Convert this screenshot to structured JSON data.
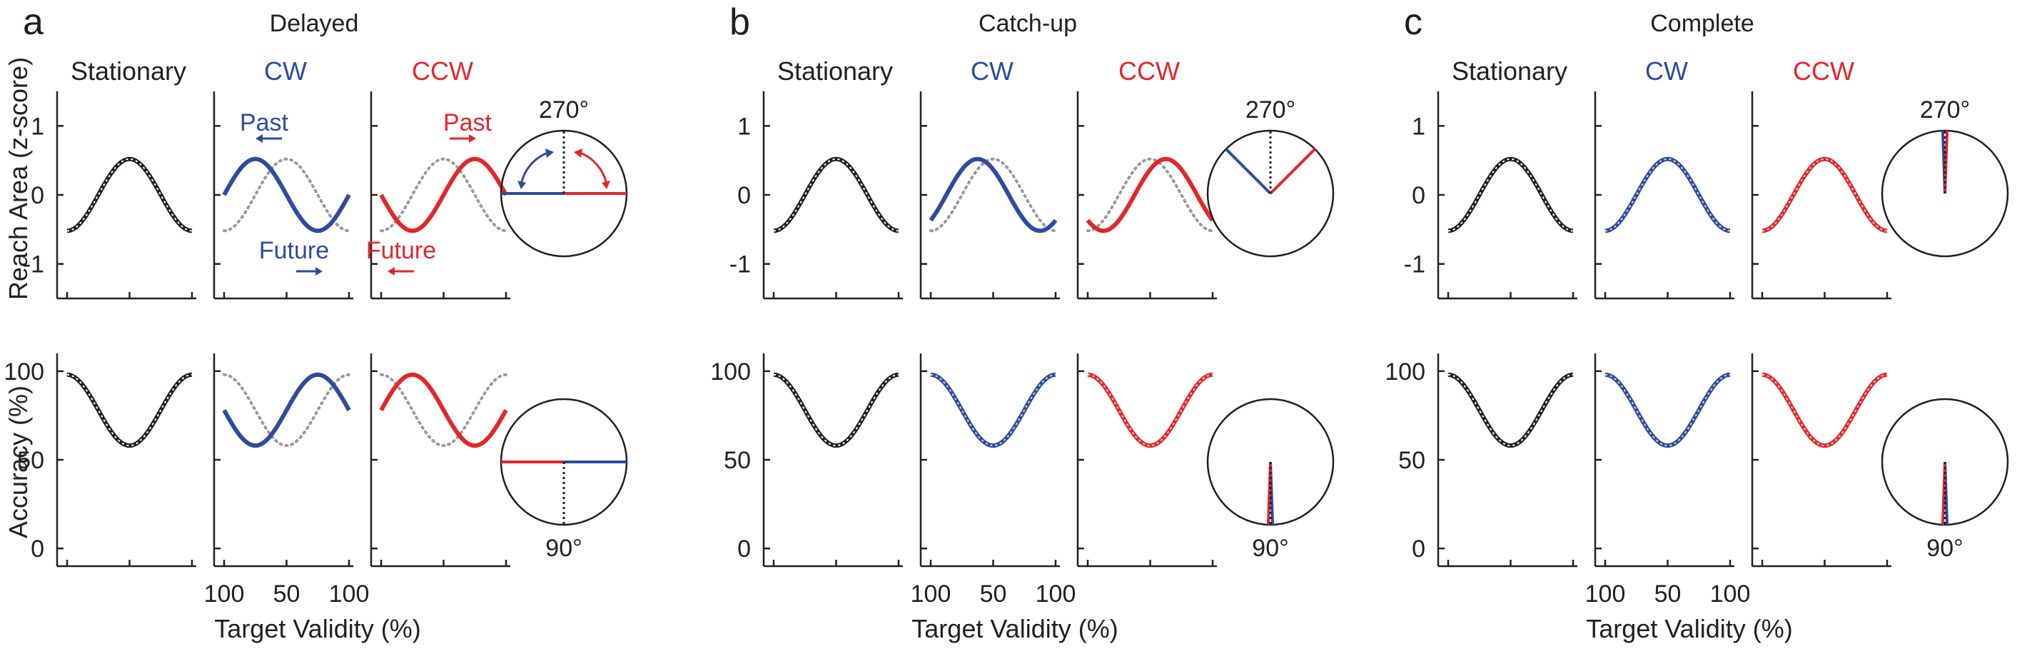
{
  "figure": {
    "y_axis_top_label": "Reach Area (z-score)",
    "y_axis_bottom_label": "Accuracy (%)",
    "x_axis_label": "Target Validity (%)",
    "x_tick_labels": [
      "100",
      "50",
      "100"
    ],
    "col_titles": [
      "Stationary",
      "CW",
      "CCW"
    ],
    "angle_270": "270°",
    "angle_90": "90°",
    "annot_past": "Past",
    "annot_future": "Future"
  },
  "colors": {
    "stationary": "#231f20",
    "cw": "#2e4b9e",
    "ccw": "#e4262a",
    "reference": "#9a9a9a"
  },
  "panels": [
    {
      "letter": "a",
      "title": "Delayed"
    },
    {
      "letter": "b",
      "title": "Catch-up"
    },
    {
      "letter": "c",
      "title": "Complete"
    }
  ],
  "chart_data": [
    {
      "type": "line",
      "panel": "a",
      "title": "Delayed",
      "x_domain": [
        0,
        1
      ],
      "reach_area": {
        "ylabel": "Reach Area (z-score)",
        "ylim": [
          -1.5,
          1.5
        ],
        "yticks": [
          -1,
          0,
          1
        ],
        "reference": {
          "amplitude": 0.52,
          "peak_x": 0.5
        },
        "series": [
          {
            "name": "Stationary",
            "amplitude": 0.52,
            "peak_x": 0.5
          },
          {
            "name": "CW",
            "amplitude": 0.52,
            "peak_x": 0.25
          },
          {
            "name": "CCW",
            "amplitude": 0.52,
            "peak_x": 0.75
          }
        ],
        "phase_angles_deg": {
          "cw": 180,
          "ccw": 0,
          "stationary": 270
        }
      },
      "accuracy": {
        "ylabel": "Accuracy (%)",
        "ylim": [
          -10,
          110
        ],
        "yticks": [
          0,
          50,
          100
        ],
        "reference": {
          "mid": 78,
          "amplitude": 20,
          "trough_x": 0.5
        },
        "series": [
          {
            "name": "Stationary",
            "mid": 78,
            "amplitude": 20,
            "trough_x": 0.5
          },
          {
            "name": "CW",
            "mid": 78,
            "amplitude": 20,
            "trough_x": 0.25
          },
          {
            "name": "CCW",
            "mid": 78,
            "amplitude": 20,
            "trough_x": 0.75
          }
        ],
        "phase_angles_deg": {
          "cw": 0,
          "ccw": 180,
          "stationary": 90
        }
      }
    },
    {
      "type": "line",
      "panel": "b",
      "title": "Catch-up",
      "x_domain": [
        0,
        1
      ],
      "reach_area": {
        "ylabel": "Reach Area (z-score)",
        "ylim": [
          -1.5,
          1.5
        ],
        "yticks": [
          -1,
          0,
          1
        ],
        "reference": {
          "amplitude": 0.52,
          "peak_x": 0.5
        },
        "series": [
          {
            "name": "Stationary",
            "amplitude": 0.52,
            "peak_x": 0.5
          },
          {
            "name": "CW",
            "amplitude": 0.52,
            "peak_x": 0.375
          },
          {
            "name": "CCW",
            "amplitude": 0.52,
            "peak_x": 0.625
          }
        ],
        "phase_angles_deg": {
          "cw": 225,
          "ccw": 315,
          "stationary": 270
        }
      },
      "accuracy": {
        "ylabel": "Accuracy (%)",
        "ylim": [
          -10,
          110
        ],
        "yticks": [
          0,
          50,
          100
        ],
        "reference": {
          "mid": 78,
          "amplitude": 20,
          "trough_x": 0.5
        },
        "series": [
          {
            "name": "Stationary",
            "mid": 78,
            "amplitude": 20,
            "trough_x": 0.5
          },
          {
            "name": "CW",
            "mid": 78,
            "amplitude": 20,
            "trough_x": 0.5
          },
          {
            "name": "CCW",
            "mid": 78,
            "amplitude": 20,
            "trough_x": 0.5
          }
        ],
        "phase_angles_deg": {
          "cw": 90,
          "ccw": 90,
          "stationary": 90
        }
      }
    },
    {
      "type": "line",
      "panel": "c",
      "title": "Complete",
      "x_domain": [
        0,
        1
      ],
      "reach_area": {
        "ylabel": "Reach Area (z-score)",
        "ylim": [
          -1.5,
          1.5
        ],
        "yticks": [
          -1,
          0,
          1
        ],
        "reference": {
          "amplitude": 0.52,
          "peak_x": 0.5
        },
        "series": [
          {
            "name": "Stationary",
            "amplitude": 0.52,
            "peak_x": 0.5
          },
          {
            "name": "CW",
            "amplitude": 0.52,
            "peak_x": 0.5
          },
          {
            "name": "CCW",
            "amplitude": 0.52,
            "peak_x": 0.5
          }
        ],
        "phase_angles_deg": {
          "cw": 270,
          "ccw": 270,
          "stationary": 270
        }
      },
      "accuracy": {
        "ylabel": "Accuracy (%)",
        "ylim": [
          -10,
          110
        ],
        "yticks": [
          0,
          50,
          100
        ],
        "reference": {
          "mid": 78,
          "amplitude": 20,
          "trough_x": 0.5
        },
        "series": [
          {
            "name": "Stationary",
            "mid": 78,
            "amplitude": 20,
            "trough_x": 0.5
          },
          {
            "name": "CW",
            "mid": 78,
            "amplitude": 20,
            "trough_x": 0.5
          },
          {
            "name": "CCW",
            "mid": 78,
            "amplitude": 20,
            "trough_x": 0.5
          }
        ],
        "phase_angles_deg": {
          "cw": 90,
          "ccw": 90,
          "stationary": 90
        }
      }
    }
  ]
}
